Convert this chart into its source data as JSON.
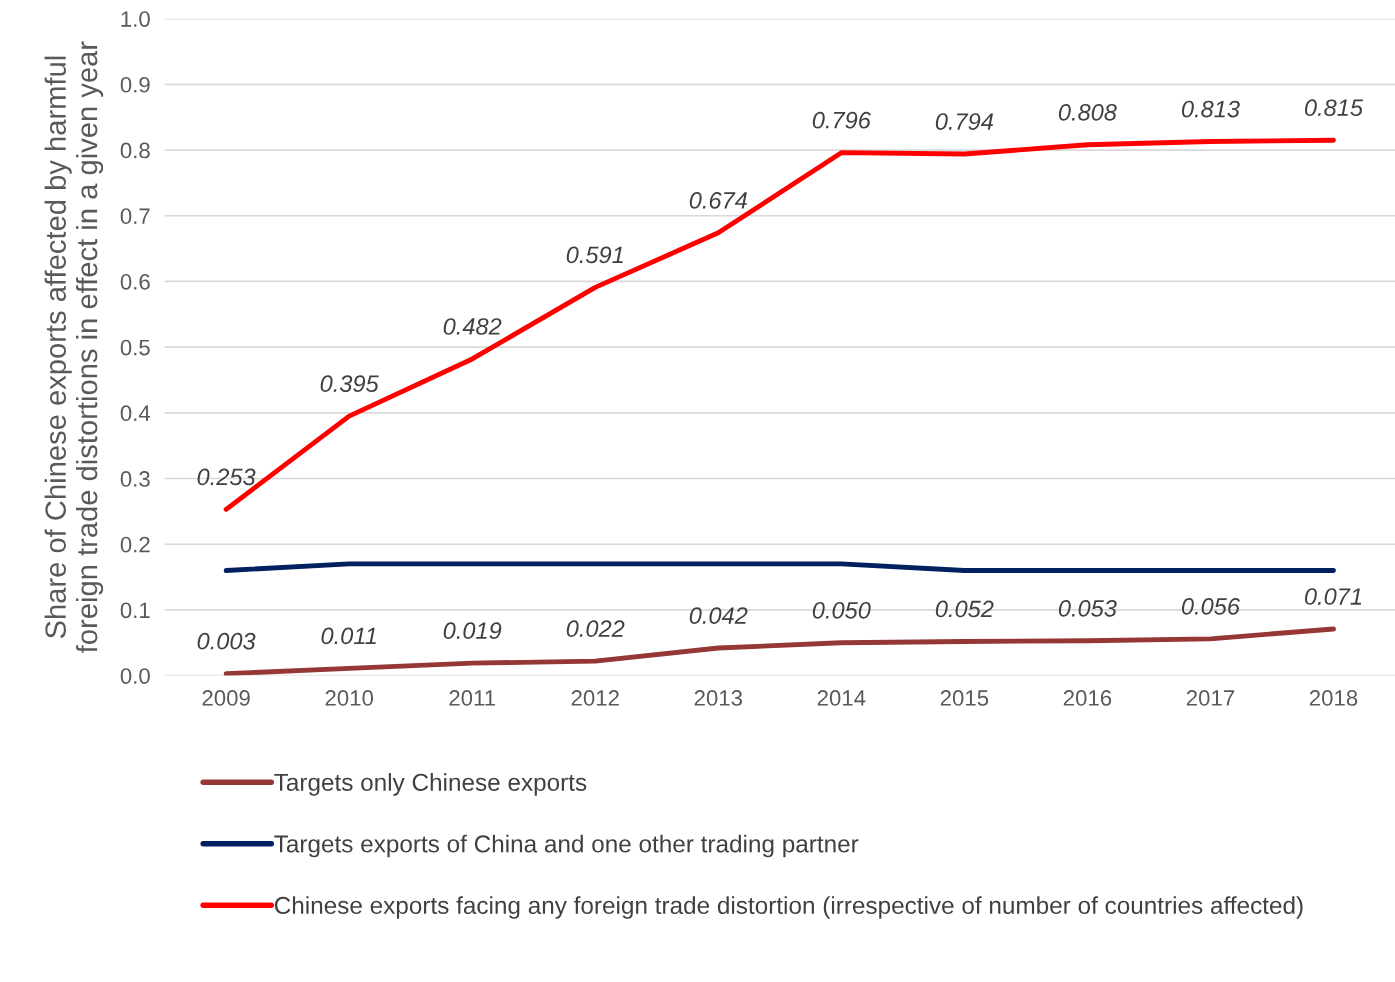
{
  "chart_data": {
    "type": "line",
    "ylabel": "Share of Chinese exports affected by harmful\nforeign trade distortions in effect in a given year",
    "categories": [
      "2009",
      "2010",
      "2011",
      "2012",
      "2013",
      "2014",
      "2015",
      "2016",
      "2017",
      "2018"
    ],
    "series": [
      {
        "name": "Targets only Chinese exports",
        "color": "#953735",
        "values": [
          0.003,
          0.011,
          0.019,
          0.022,
          0.042,
          0.05,
          0.052,
          0.053,
          0.056,
          0.071
        ],
        "value_labels": [
          "0.003",
          "0.011",
          "0.019",
          "0.022",
          "0.042",
          "0.050",
          "0.052",
          "0.053",
          "0.056",
          "0.071"
        ]
      },
      {
        "name": "Targets exports of China and one other trading partner",
        "color": "#002060",
        "values": [
          0.16,
          0.17,
          0.17,
          0.17,
          0.17,
          0.17,
          0.16,
          0.16,
          0.16,
          0.16
        ]
      },
      {
        "name": "Chinese exports facing any foreign trade distortion (irrespective of number of countries affected)",
        "color": "#ff0000",
        "values": [
          0.253,
          0.395,
          0.482,
          0.591,
          0.674,
          0.796,
          0.794,
          0.808,
          0.813,
          0.815
        ],
        "value_labels": [
          "0.253",
          "0.395",
          "0.482",
          "0.591",
          "0.674",
          "0.796",
          "0.794",
          "0.808",
          "0.813",
          "0.815"
        ]
      }
    ],
    "ylim": [
      0,
      1.0
    ],
    "yticks": [
      {
        "value": 0,
        "label": "0.0"
      },
      {
        "value": 0.1,
        "label": "0.1"
      },
      {
        "value": 0.2,
        "label": "0.2"
      },
      {
        "value": 0.3,
        "label": "0.3"
      },
      {
        "value": 0.4,
        "label": "0.4"
      },
      {
        "value": 0.5,
        "label": "0.5"
      },
      {
        "value": 0.6,
        "label": "0.6"
      },
      {
        "value": 0.7,
        "label": "0.7"
      },
      {
        "value": 0.8,
        "label": "0.8"
      },
      {
        "value": 0.9,
        "label": "0.9"
      },
      {
        "value": 1.0,
        "label": "1.0"
      }
    ],
    "grid": "y",
    "legend": "bottom",
    "line_style": "solid",
    "marker": "none"
  }
}
